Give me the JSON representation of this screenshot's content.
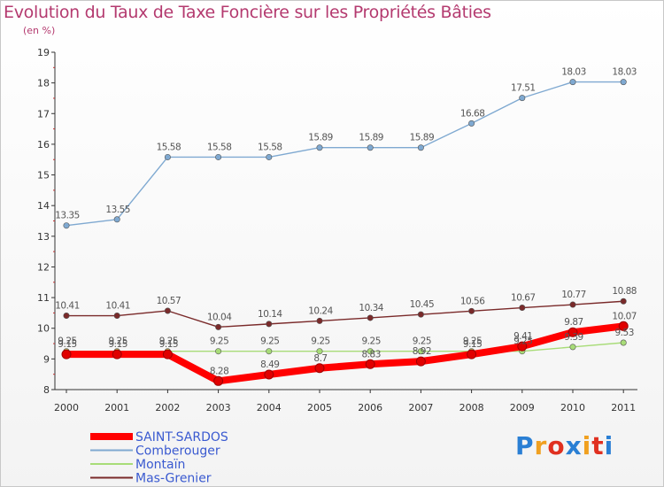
{
  "chart_data": {
    "type": "line",
    "title": "Evolution du Taux de Taxe Foncière sur les Propriétés Bâties",
    "subtitle": "(en %)",
    "xlabel": "",
    "ylabel": "",
    "ylim": [
      8,
      19
    ],
    "y_ticks": [
      "8",
      "9",
      "10",
      "11",
      "12",
      "13",
      "14",
      "15",
      "16",
      "17",
      "18",
      "19"
    ],
    "categories": [
      "2000",
      "2001",
      "2002",
      "2003",
      "2004",
      "2005",
      "2006",
      "2007",
      "2008",
      "2009",
      "2010",
      "2011"
    ],
    "series": [
      {
        "name": "SAINT-SARDOS",
        "color": "#ff0000",
        "values": [
          9.15,
          9.15,
          9.15,
          8.28,
          8.49,
          8.7,
          8.83,
          8.92,
          9.15,
          9.41,
          9.87,
          10.07
        ],
        "labels": [
          "9.15",
          "9.15",
          "9.15",
          "8.28",
          "8.49",
          "8.7",
          "8.83",
          "8.92",
          "9.15",
          "9.41",
          "9.87",
          "10.07"
        ]
      },
      {
        "name": "Comberouger",
        "color": "#7fa9d1",
        "values": [
          13.35,
          13.55,
          15.58,
          15.58,
          15.58,
          15.89,
          15.89,
          15.89,
          16.68,
          17.51,
          18.03,
          18.03
        ],
        "labels": [
          "13.35",
          "13.55",
          "15.58",
          "15.58",
          "15.58",
          "15.89",
          "15.89",
          "15.89",
          "16.68",
          "17.51",
          "18.03",
          "18.03"
        ]
      },
      {
        "name": "Montaïn",
        "color": "#a8dc78",
        "values": [
          9.25,
          9.25,
          9.25,
          9.25,
          9.25,
          9.25,
          9.25,
          9.25,
          9.25,
          9.25,
          9.39,
          9.53
        ],
        "labels": [
          "9.25",
          "9.25",
          "9.25",
          "9.25",
          "9.25",
          "9.25",
          "9.25",
          "9.25",
          "9.25",
          "9.25",
          "9.39",
          "9.53"
        ]
      },
      {
        "name": "Mas-Grenier",
        "color": "#7a2a2a",
        "values": [
          10.41,
          10.41,
          10.57,
          10.04,
          10.14,
          10.24,
          10.34,
          10.45,
          10.56,
          10.67,
          10.77,
          10.88
        ],
        "labels": [
          "10.41",
          "10.41",
          "10.57",
          "10.04",
          "10.14",
          "10.24",
          "10.34",
          "10.45",
          "10.56",
          "10.67",
          "10.77",
          "10.88"
        ]
      }
    ],
    "legend_position": "bottom-left"
  },
  "logo": {
    "text": "Proxiti",
    "letters": [
      "P",
      "r",
      "o",
      "x",
      "i",
      "t",
      "i"
    ],
    "colors": [
      "#2a7fd4",
      "#f0a020",
      "#e03020",
      "#2a7fd4",
      "#f0a020",
      "#e03020",
      "#2a7fd4"
    ]
  }
}
